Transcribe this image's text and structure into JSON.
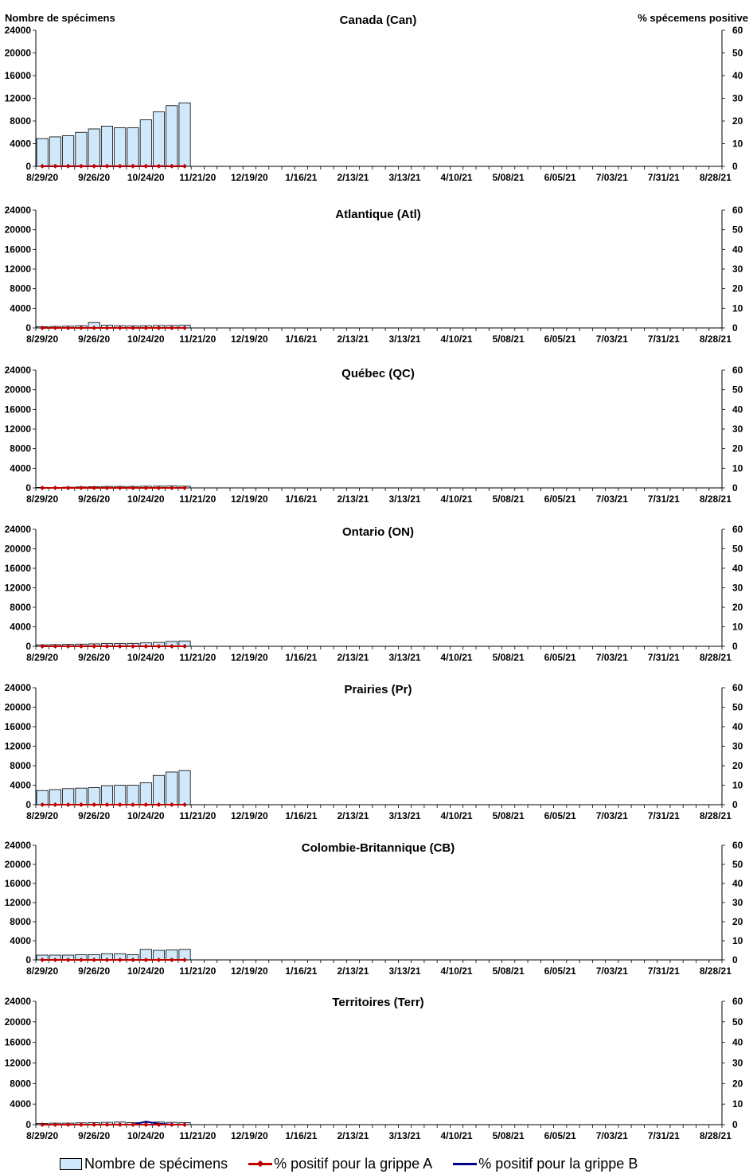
{
  "header": {
    "left_axis_title": "Nombre de spécimens",
    "right_axis_title": "% spécemens positive"
  },
  "legend": {
    "specimens": "Nombre de spécimens",
    "flu_a": "% positif pour la grippe A",
    "flu_b": "% positif pour la grippe B"
  },
  "colors": {
    "bar_fill": "#cfe9fb",
    "bar_stroke": "#000000",
    "flu_a": "#c00000",
    "flu_b": "#00008b"
  },
  "chart_data": [
    {
      "type": "bar",
      "title": "Canada (Can)",
      "x_tick_labels": [
        "8/29/20",
        "9/26/20",
        "10/24/20",
        "11/21/20",
        "12/19/20",
        "1/16/21",
        "2/13/21",
        "3/13/21",
        "4/10/21",
        "5/08/21",
        "6/05/21",
        "7/03/21",
        "7/31/21",
        "8/28/21"
      ],
      "y_ticks": [
        0,
        4000,
        8000,
        12000,
        16000,
        20000,
        24000
      ],
      "y2_ticks": [
        0,
        10,
        20,
        30,
        40,
        50,
        60
      ],
      "ylim": [
        0,
        24000
      ],
      "y2lim": [
        0,
        60
      ],
      "n_weeks": 53,
      "series": [
        {
          "name": "Nombre de spécimens",
          "type": "bar",
          "values": [
            4900,
            5200,
            5400,
            6000,
            6600,
            7100,
            6800,
            6800,
            8200,
            9600,
            10700,
            11200
          ]
        },
        {
          "name": "% positif pour la grippe A",
          "type": "line",
          "values": [
            0.1,
            0.1,
            0.1,
            0.1,
            0.1,
            0.1,
            0.1,
            0.1,
            0.1,
            0.1,
            0.1,
            0.1
          ]
        },
        {
          "name": "% positif pour la grippe B",
          "type": "line",
          "values": [
            0,
            0,
            0,
            0,
            0,
            0,
            0,
            0,
            0,
            0,
            0,
            0
          ]
        }
      ]
    },
    {
      "type": "bar",
      "title": "Atlantique (Atl)",
      "x_tick_labels": [
        "8/29/20",
        "9/26/20",
        "10/24/20",
        "11/21/20",
        "12/19/20",
        "1/16/21",
        "2/13/21",
        "3/13/21",
        "4/10/21",
        "5/08/21",
        "6/05/21",
        "7/03/21",
        "7/31/21",
        "8/28/21"
      ],
      "y_ticks": [
        0,
        4000,
        8000,
        12000,
        16000,
        20000,
        24000
      ],
      "y2_ticks": [
        0,
        10,
        20,
        30,
        40,
        50,
        60
      ],
      "ylim": [
        0,
        24000
      ],
      "y2lim": [
        0,
        60
      ],
      "n_weeks": 53,
      "series": [
        {
          "name": "Nombre de spécimens",
          "type": "bar",
          "values": [
            250,
            300,
            350,
            450,
            1100,
            550,
            450,
            400,
            450,
            500,
            500,
            550
          ]
        },
        {
          "name": "% positif pour la grippe A",
          "type": "line",
          "values": [
            0,
            0,
            0,
            0,
            0,
            0,
            0,
            0,
            0,
            0,
            0,
            0
          ]
        },
        {
          "name": "% positif pour la grippe B",
          "type": "line",
          "values": [
            0,
            0,
            0,
            0,
            0,
            0,
            0,
            0,
            0,
            0,
            0,
            0
          ]
        }
      ]
    },
    {
      "type": "bar",
      "title": "Québec (QC)",
      "x_tick_labels": [
        "8/29/20",
        "9/26/20",
        "10/24/20",
        "11/21/20",
        "12/19/20",
        "1/16/21",
        "2/13/21",
        "3/13/21",
        "4/10/21",
        "5/08/21",
        "6/05/21",
        "7/03/21",
        "7/31/21",
        "8/28/21"
      ],
      "y_ticks": [
        0,
        4000,
        8000,
        12000,
        16000,
        20000,
        24000
      ],
      "y2_ticks": [
        0,
        10,
        20,
        30,
        40,
        50,
        60
      ],
      "ylim": [
        0,
        24000
      ],
      "y2lim": [
        0,
        60
      ],
      "n_weeks": 53,
      "series": [
        {
          "name": "Nombre de spécimens",
          "type": "bar",
          "values": [
            100,
            100,
            150,
            200,
            250,
            300,
            300,
            300,
            350,
            350,
            400,
            350
          ]
        },
        {
          "name": "% positif pour la grippe A",
          "type": "line",
          "values": [
            0,
            0,
            0,
            0,
            0,
            0,
            0,
            0,
            0,
            0,
            0,
            0
          ]
        },
        {
          "name": "% positif pour la grippe B",
          "type": "line",
          "values": [
            0,
            0,
            0,
            0,
            0,
            0,
            0,
            0,
            0,
            0,
            0,
            0
          ]
        }
      ]
    },
    {
      "type": "bar",
      "title": "Ontario (ON)",
      "x_tick_labels": [
        "8/29/20",
        "9/26/20",
        "10/24/20",
        "11/21/20",
        "12/19/20",
        "1/16/21",
        "2/13/21",
        "3/13/21",
        "4/10/21",
        "5/08/21",
        "6/05/21",
        "7/03/21",
        "7/31/21",
        "8/28/21"
      ],
      "y_ticks": [
        0,
        4000,
        8000,
        12000,
        16000,
        20000,
        24000
      ],
      "y2_ticks": [
        0,
        10,
        20,
        30,
        40,
        50,
        60
      ],
      "ylim": [
        0,
        24000
      ],
      "y2lim": [
        0,
        60
      ],
      "n_weeks": 53,
      "series": [
        {
          "name": "Nombre de spécimens",
          "type": "bar",
          "values": [
            300,
            350,
            400,
            450,
            500,
            550,
            550,
            600,
            700,
            800,
            1000,
            1100
          ]
        },
        {
          "name": "% positif pour la grippe A",
          "type": "line",
          "values": [
            0,
            0,
            0,
            0,
            0,
            0,
            0,
            0,
            0,
            0,
            0,
            0
          ]
        },
        {
          "name": "% positif pour la grippe B",
          "type": "line",
          "values": [
            0,
            0,
            0,
            0,
            0,
            0,
            0,
            0,
            0,
            0,
            0,
            0
          ]
        }
      ]
    },
    {
      "type": "bar",
      "title": "Prairies (Pr)",
      "x_tick_labels": [
        "8/29/20",
        "9/26/20",
        "10/24/20",
        "11/21/20",
        "12/19/20",
        "1/16/21",
        "2/13/21",
        "3/13/21",
        "4/10/21",
        "5/08/21",
        "6/05/21",
        "7/03/21",
        "7/31/21",
        "8/28/21"
      ],
      "y_ticks": [
        0,
        4000,
        8000,
        12000,
        16000,
        20000,
        24000
      ],
      "y2_ticks": [
        0,
        10,
        20,
        30,
        40,
        50,
        60
      ],
      "ylim": [
        0,
        24000
      ],
      "y2lim": [
        0,
        60
      ],
      "n_weeks": 53,
      "series": [
        {
          "name": "Nombre de spécimens",
          "type": "bar",
          "values": [
            2900,
            3100,
            3300,
            3400,
            3500,
            3900,
            4000,
            4000,
            4500,
            6000,
            6700,
            7000
          ]
        },
        {
          "name": "% positif pour la grippe A",
          "type": "line",
          "values": [
            0,
            0,
            0,
            0,
            0,
            0,
            0,
            0,
            0,
            0,
            0,
            0
          ]
        },
        {
          "name": "% positif pour la grippe B",
          "type": "line",
          "values": [
            0,
            0,
            0,
            0,
            0,
            0,
            0,
            0,
            0,
            0,
            0,
            0
          ]
        }
      ]
    },
    {
      "type": "bar",
      "title": "Colombie-Britannique (CB)",
      "x_tick_labels": [
        "8/29/20",
        "9/26/20",
        "10/24/20",
        "11/21/20",
        "12/19/20",
        "1/16/21",
        "2/13/21",
        "3/13/21",
        "4/10/21",
        "5/08/21",
        "6/05/21",
        "7/03/21",
        "7/31/21",
        "8/28/21"
      ],
      "y_ticks": [
        0,
        4000,
        8000,
        12000,
        16000,
        20000,
        24000
      ],
      "y2_ticks": [
        0,
        10,
        20,
        30,
        40,
        50,
        60
      ],
      "ylim": [
        0,
        24000
      ],
      "y2lim": [
        0,
        60
      ],
      "n_weeks": 53,
      "series": [
        {
          "name": "Nombre de spécimens",
          "type": "bar",
          "values": [
            1000,
            1000,
            1000,
            1100,
            1100,
            1300,
            1300,
            1100,
            2200,
            2000,
            2100,
            2200
          ]
        },
        {
          "name": "% positif pour la grippe A",
          "type": "line",
          "values": [
            0,
            0,
            0,
            0,
            0,
            0,
            0,
            0,
            0,
            0,
            0,
            0
          ]
        },
        {
          "name": "% positif pour la grippe B",
          "type": "line",
          "values": [
            0,
            0,
            0,
            0,
            0,
            0,
            0,
            0,
            0,
            0,
            0,
            0
          ]
        }
      ]
    },
    {
      "type": "bar",
      "title": "Territoires (Terr)",
      "x_tick_labels": [
        "8/29/20",
        "9/26/20",
        "10/24/20",
        "11/21/20",
        "12/19/20",
        "1/16/21",
        "2/13/21",
        "3/13/21",
        "4/10/21",
        "5/08/21",
        "6/05/21",
        "7/03/21",
        "7/31/21",
        "8/28/21"
      ],
      "y_ticks": [
        0,
        4000,
        8000,
        12000,
        16000,
        20000,
        24000
      ],
      "y2_ticks": [
        0,
        10,
        20,
        30,
        40,
        50,
        60
      ],
      "ylim": [
        0,
        24000
      ],
      "y2lim": [
        0,
        60
      ],
      "n_weeks": 53,
      "series": [
        {
          "name": "Nombre de spécimens",
          "type": "bar",
          "values": [
            250,
            300,
            300,
            350,
            400,
            450,
            500,
            400,
            400,
            500,
            450,
            400
          ]
        },
        {
          "name": "% positif pour la grippe A",
          "type": "line",
          "values": [
            0,
            0,
            0,
            0,
            0,
            0,
            0,
            0,
            0,
            0,
            0,
            0
          ]
        },
        {
          "name": "% positif pour la grippe B",
          "type": "line",
          "values": [
            0,
            0,
            0,
            0,
            0,
            0,
            0,
            0,
            1.5,
            0.5,
            0,
            0
          ]
        }
      ]
    }
  ]
}
